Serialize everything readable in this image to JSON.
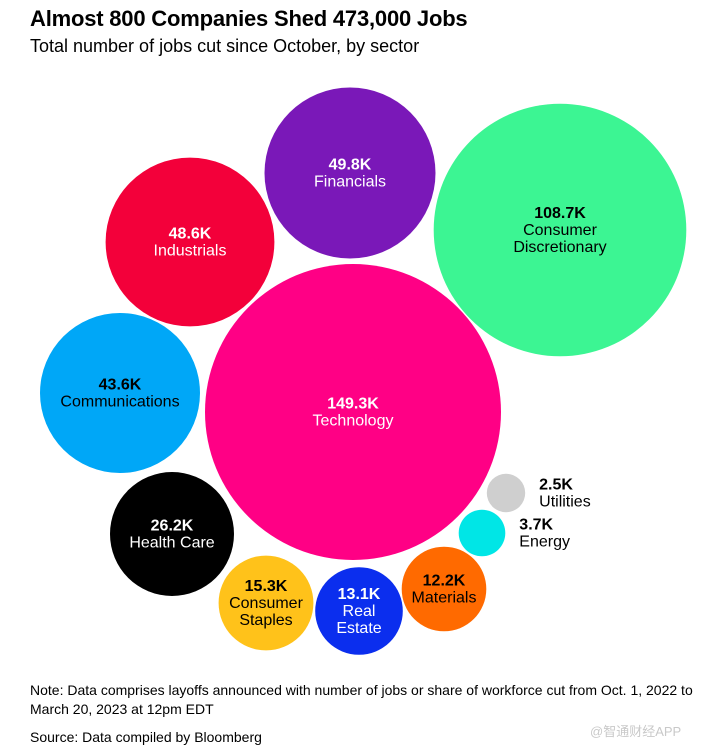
{
  "header": {
    "title": "Almost 800 Companies Shed 473,000 Jobs",
    "subtitle": "Total number of jobs cut since October, by sector"
  },
  "chart_data": {
    "type": "bubble",
    "title": "Almost 800 Companies Shed 473,000 Jobs",
    "subtitle": "Total number of jobs cut since October, by sector",
    "unit": "jobs",
    "series": [
      {
        "name": "Technology",
        "value": 149300,
        "display": "149.3K",
        "label_lines": [
          "Technology"
        ],
        "color": "#FF0085",
        "text_color": "#FFFFFF"
      },
      {
        "name": "Consumer Discretionary",
        "value": 108700,
        "display": "108.7K",
        "label_lines": [
          "Consumer",
          "Discretionary"
        ],
        "color": "#3CF593",
        "text_color": "#000000"
      },
      {
        "name": "Financials",
        "value": 49800,
        "display": "49.8K",
        "label_lines": [
          "Financials"
        ],
        "color": "#7A18B8",
        "text_color": "#FFFFFF"
      },
      {
        "name": "Industrials",
        "value": 48600,
        "display": "48.6K",
        "label_lines": [
          "Industrials"
        ],
        "color": "#F3003A",
        "text_color": "#FFFFFF"
      },
      {
        "name": "Communications",
        "value": 43600,
        "display": "43.6K",
        "label_lines": [
          "Communications"
        ],
        "color": "#00A7F7",
        "text_color": "#000000"
      },
      {
        "name": "Health Care",
        "value": 26200,
        "display": "26.2K",
        "label_lines": [
          "Health Care"
        ],
        "color": "#000000",
        "text_color": "#FFFFFF"
      },
      {
        "name": "Consumer Staples",
        "value": 15300,
        "display": "15.3K",
        "label_lines": [
          "Consumer",
          "Staples"
        ],
        "color": "#FFC21A",
        "text_color": "#000000"
      },
      {
        "name": "Real Estate",
        "value": 13100,
        "display": "13.1K",
        "label_lines": [
          "Real",
          "Estate"
        ],
        "color": "#0B2EEE",
        "text_color": "#FFFFFF"
      },
      {
        "name": "Materials",
        "value": 12200,
        "display": "12.2K",
        "label_lines": [
          "Materials"
        ],
        "color": "#FF6A00",
        "text_color": "#000000"
      },
      {
        "name": "Energy",
        "value": 3700,
        "display": "3.7K",
        "label_lines": [
          "Energy"
        ],
        "color": "#00E6E6",
        "text_color": "#000000"
      },
      {
        "name": "Utilities",
        "value": 2500,
        "display": "2.5K",
        "label_lines": [
          "Utilities"
        ],
        "color": "#CFCFCF",
        "text_color": "#000000"
      }
    ]
  },
  "footer": {
    "note": "Note: Data comprises layoffs announced with number of jobs or share of workforce cut from Oct. 1, 2022 to March 20, 2023 at 12pm EDT",
    "source": "Source: Data compiled by Bloomberg",
    "watermark": "@智通财经APP"
  }
}
